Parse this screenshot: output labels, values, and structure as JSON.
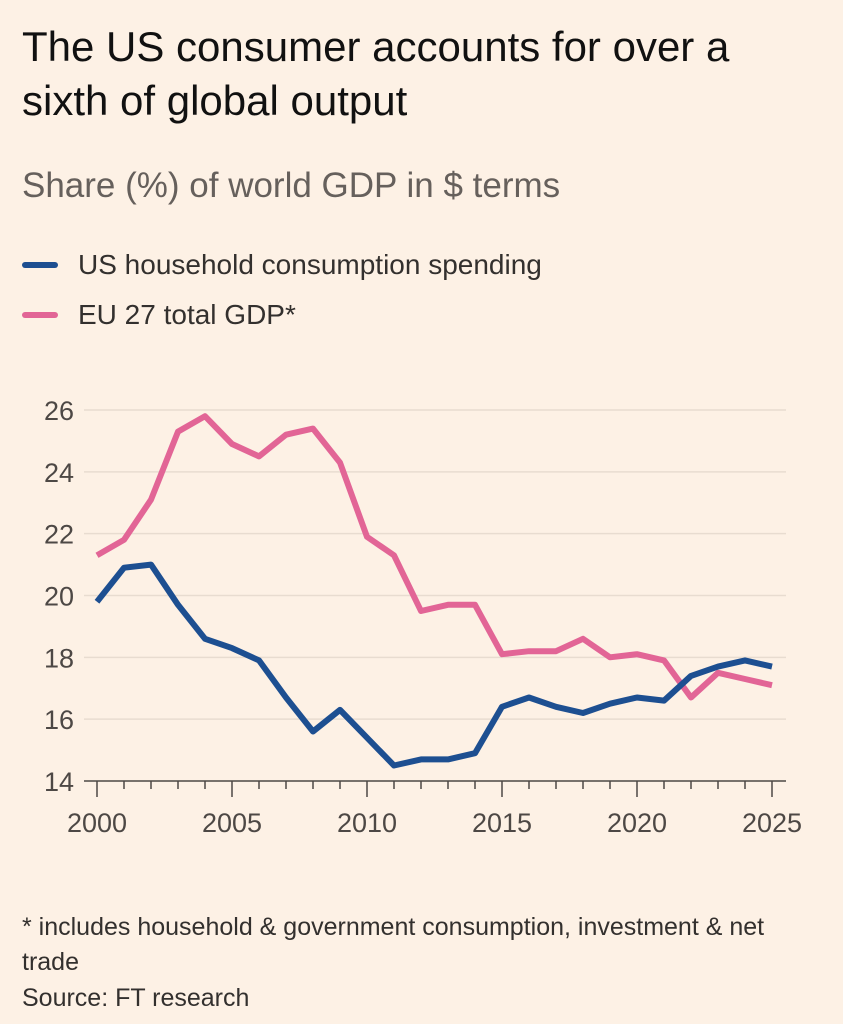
{
  "header": {
    "title": "The US consumer accounts for over a sixth of global output",
    "subtitle": "Share (%) of world GDP in $ terms"
  },
  "footer": {
    "footnote": "* includes household & government consumption, investment & net trade",
    "source": "Source: FT research"
  },
  "colors": {
    "us_series": "#1d4f91",
    "eu_series": "#e26596",
    "background": "#fdf1e5",
    "grid": "#e8dcd0"
  },
  "chart_data": {
    "type": "line",
    "title": "The US consumer accounts for over a sixth of global output",
    "subtitle": "Share (%) of world GDP in $ terms",
    "xlabel": "",
    "ylabel": "",
    "x": [
      2000,
      2001,
      2002,
      2003,
      2004,
      2005,
      2006,
      2007,
      2008,
      2009,
      2010,
      2011,
      2012,
      2013,
      2014,
      2015,
      2016,
      2017,
      2018,
      2019,
      2020,
      2021,
      2022,
      2023,
      2024,
      2025
    ],
    "xticks": [
      "2000",
      "2005",
      "2010",
      "2015",
      "2020",
      "2025"
    ],
    "yticks": [
      "14",
      "16",
      "18",
      "20",
      "22",
      "24",
      "26"
    ],
    "ylim": [
      14,
      26
    ],
    "xlim": [
      2000,
      2025
    ],
    "grid": true,
    "legend_position": "top-left",
    "series": [
      {
        "name": "US household consumption spending",
        "color": "#1d4f91",
        "values": [
          19.8,
          20.9,
          21.0,
          19.7,
          18.6,
          18.3,
          17.9,
          16.7,
          15.6,
          16.3,
          15.4,
          14.5,
          14.7,
          14.7,
          14.9,
          16.4,
          16.7,
          16.4,
          16.2,
          16.5,
          16.7,
          16.6,
          17.4,
          17.7,
          17.9,
          17.7
        ]
      },
      {
        "name": "EU 27 total GDP*",
        "color": "#e26596",
        "values": [
          21.3,
          21.8,
          23.1,
          25.3,
          25.8,
          24.9,
          24.5,
          25.2,
          25.4,
          24.3,
          21.9,
          21.3,
          19.5,
          19.7,
          19.7,
          18.1,
          18.2,
          18.2,
          18.6,
          18.0,
          18.1,
          17.9,
          16.7,
          17.5,
          17.3,
          17.1
        ]
      }
    ]
  }
}
